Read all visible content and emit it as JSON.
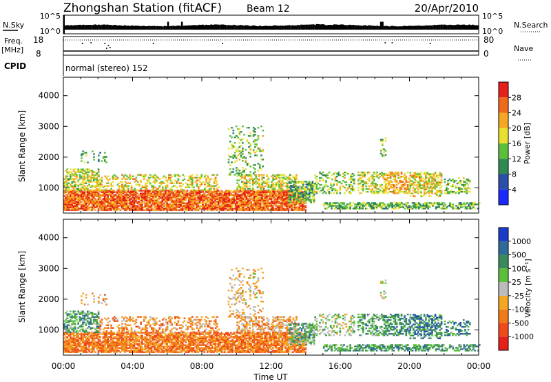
{
  "header": {
    "station": "Zhongshan Station (fitACF)",
    "beam": "Beam 12",
    "date": "20/Apr/2010"
  },
  "params_panel": {
    "nsky_label": "N.Sky",
    "nsky_ticks": [
      "10^5",
      "10^0"
    ],
    "nsearch_label": "N.Search",
    "nsearch_ticks": [
      "10^5",
      "10^0"
    ],
    "freq_label": "Freq.",
    "freq_unit": "[MHz]",
    "freq_ticks": [
      "18",
      "8"
    ],
    "nave_label": "Nave",
    "nave_ticks": [
      "80",
      "0"
    ],
    "cpid_label": "CPID",
    "cpid_value": "normal (stereo) 152"
  },
  "colors": {
    "power_scale": [
      "#1a2aff",
      "#2a4fa8",
      "#2e8a52",
      "#5bbf3a",
      "#e8e030",
      "#f5a623",
      "#ef6a1a",
      "#e42018"
    ],
    "velocity_scale": [
      "#e42018",
      "#ef4a1a",
      "#f07a1a",
      "#f5a623",
      "#bbbbbb",
      "#5bbf3a",
      "#3a8a5a",
      "#2e6a9a",
      "#1a3ac8"
    ]
  },
  "chart_data": [
    {
      "type": "heatmap",
      "name": "power",
      "ylabel": "Slant Range [km]",
      "xlabel": "",
      "x_ticks": [
        "00:00",
        "04:00",
        "08:00",
        "12:00",
        "16:00",
        "20:00",
        "00:00"
      ],
      "x_range_hours": [
        0,
        24
      ],
      "y_ticks": [
        1000,
        2000,
        3000,
        4000
      ],
      "ylim": [
        180,
        4600
      ],
      "colorbar_label": "Power [dB]",
      "colorbar_ticks": [
        4,
        8,
        12,
        16,
        20,
        24,
        28
      ],
      "colorbar_range": [
        0,
        32
      ]
    },
    {
      "type": "heatmap",
      "name": "velocity",
      "ylabel": "Slant Range [km]",
      "xlabel": "Time UT",
      "x_ticks": [
        "00:00",
        "04:00",
        "08:00",
        "12:00",
        "16:00",
        "20:00",
        "00:00"
      ],
      "x_range_hours": [
        0,
        24
      ],
      "y_ticks": [
        1000,
        2000,
        3000,
        4000
      ],
      "ylim": [
        180,
        4600
      ],
      "colorbar_label": "Velocity [m s⁻¹]",
      "colorbar_ticks": [
        "1000",
        "500",
        "100",
        "25",
        "-25",
        "-100",
        "-500",
        "-1000"
      ]
    }
  ]
}
